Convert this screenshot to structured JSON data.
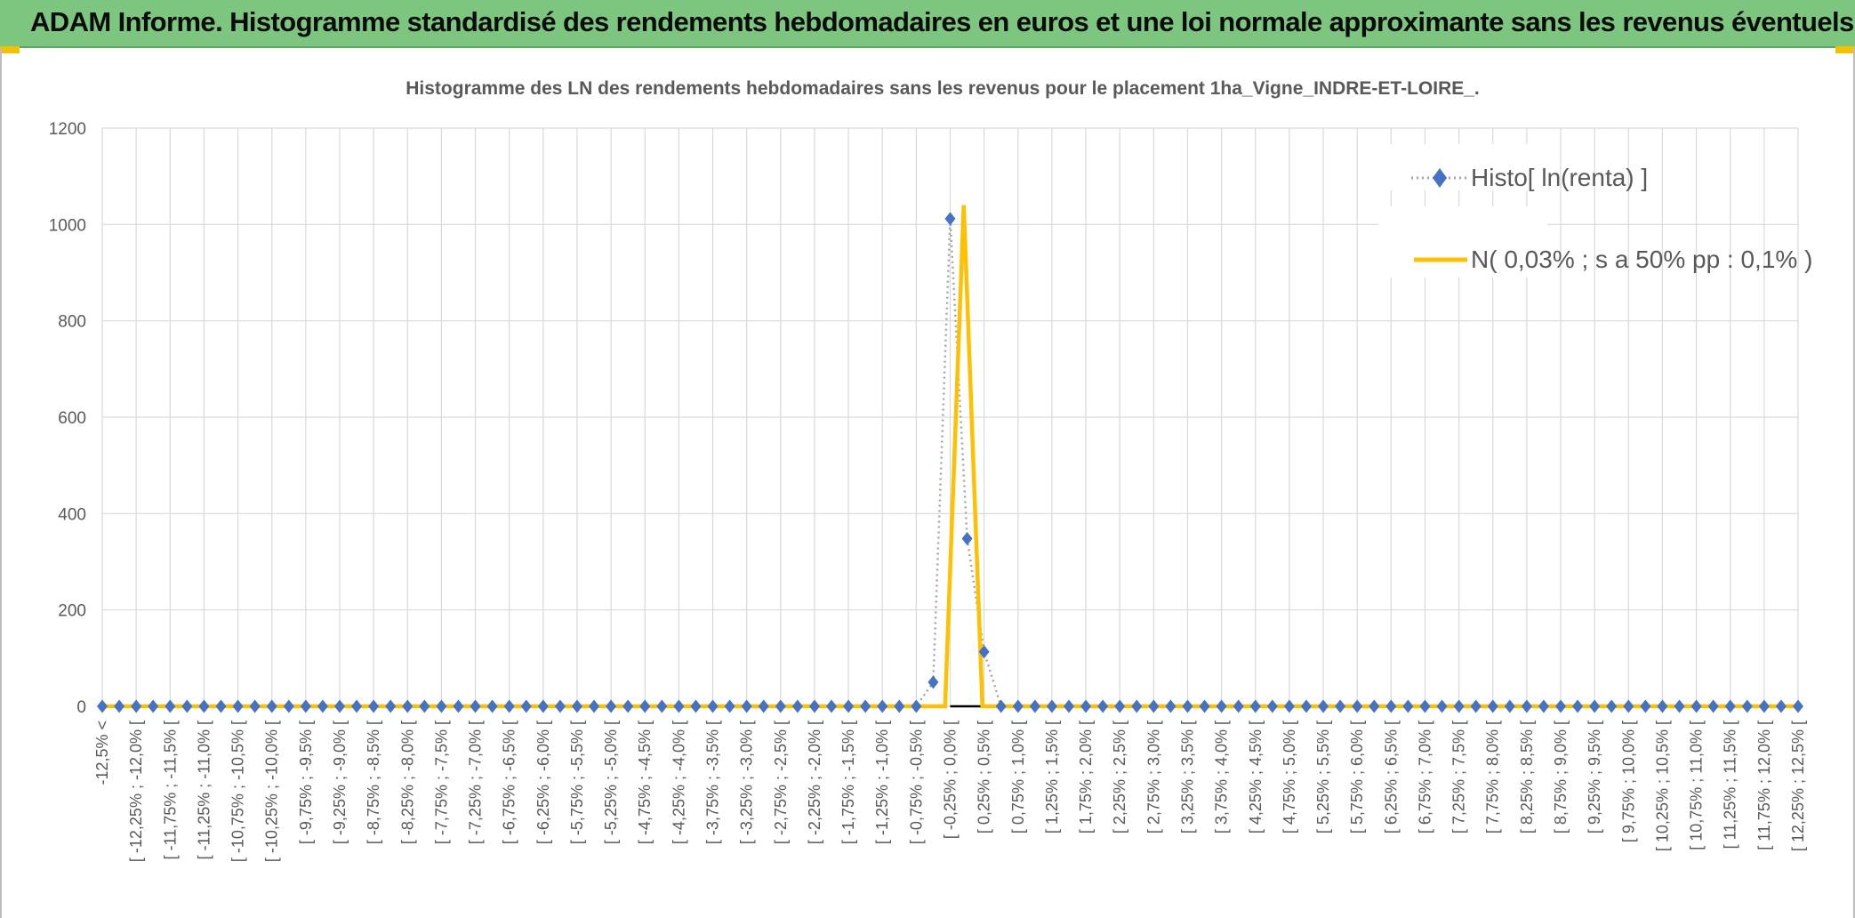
{
  "banner": {
    "title": "ADAM Informe. Histogramme standardisé des rendements hebdomadaires en euros et une loi normale approximante sans les revenus éventuels",
    "color": "#7dc67f"
  },
  "chart_data": {
    "type": "line",
    "title": "Histogramme des LN des rendements hebdomadaires sans les revenus pour le placement 1ha_Vigne_INDRE-ET-LOIRE_.",
    "xlabel": "",
    "ylabel": "",
    "ylim": [
      0,
      1200
    ],
    "yticks": [
      0,
      200,
      400,
      600,
      800,
      1000,
      1200
    ],
    "grid": true,
    "legend_position": "top-right",
    "categories": [
      "-12,5% <",
      "[ -12,25% ; -12,0% [",
      "[ -11,75% ; -11,5% [",
      "[ -11,25% ; -11,0% [",
      "[ -10,75% ; -10,5% [",
      "[ -10,25% ; -10,0% [",
      "[ -9,75% ; -9,5% [",
      "[ -9,25% ; -9,0% [",
      "[ -8,75% ; -8,5% [",
      "[ -8,25% ; -8,0% [",
      "[ -7,75% ; -7,5% [",
      "[ -7,25% ; -7,0% [",
      "[ -6,75% ; -6,5% [",
      "[ -6,25% ; -6,0% [",
      "[ -5,75% ; -5,5% [",
      "[ -5,25% ; -5,0% [",
      "[ -4,75% ; -4,5% [",
      "[ -4,25% ; -4,0% [",
      "[ -3,75% ; -3,5% [",
      "[ -3,25% ; -3,0% [",
      "[ -2,75% ; -2,5% [",
      "[ -2,25% ; -2,0% [",
      "[ -1,75% ; -1,5% [",
      "[ -1,25% ; -1,0% [",
      "[ -0,75% ; -0,5% [",
      "[ -0,25% ; 0,0% [",
      "[ 0,25% ; 0,5% [",
      "[ 0,75% ; 1,0% [",
      "[ 1,25% ; 1,5% [",
      "[ 1,75% ; 2,0% [",
      "[ 2,25% ; 2,5% [",
      "[ 2,75% ; 3,0% [",
      "[ 3,25% ; 3,5% [",
      "[ 3,75% ; 4,0% [",
      "[ 4,25% ; 4,5% [",
      "[ 4,75% ; 5,0% [",
      "[ 5,25% ; 5,5% [",
      "[ 5,75% ; 6,0% [",
      "[ 6,25% ; 6,5% [",
      "[ 6,75% ; 7,0% [",
      "[ 7,25% ; 7,5% [",
      "[ 7,75% ; 8,0% [",
      "[ 8,25% ; 8,5% [",
      "[ 8,75% ; 9,0% [",
      "[ 9,25% ; 9,5% [",
      "[ 9,75% ; 10,0% [",
      "[ 10,25% ; 10,5% [",
      "[ 10,75% ; 11,0% [",
      "[ 11,25% ; 11,5% [",
      "[ 11,75% ; 12,0% [",
      "[ 12,25% ; 12,5% ["
    ],
    "series": [
      {
        "name": "Histo[ ln(renta) ]",
        "color": "#4472c4",
        "line_color": "#a5a5a5",
        "line_style": "dotted",
        "marker": "diamond",
        "x": [
          0,
          0.5,
          1,
          1.5,
          2,
          2.5,
          3,
          3.5,
          4,
          4.5,
          5,
          5.5,
          6,
          6.5,
          7,
          7.5,
          8,
          8.5,
          9,
          9.5,
          10,
          10.5,
          11,
          11.5,
          12,
          12.5,
          13,
          13.5,
          14,
          14.5,
          15,
          15.5,
          16,
          16.5,
          17,
          17.5,
          18,
          18.5,
          19,
          19.5,
          20,
          20.5,
          21,
          21.5,
          22,
          22.5,
          23,
          23.5,
          24,
          24.5,
          25,
          25.5,
          26,
          26.5,
          27,
          27.5,
          28,
          28.5,
          29,
          29.5,
          30,
          30.5,
          31,
          31.5,
          32,
          32.5,
          33,
          33.5,
          34,
          34.5,
          35,
          35.5,
          36,
          36.5,
          37,
          37.5,
          38,
          38.5,
          39,
          39.5,
          40,
          40.5,
          41,
          41.5,
          42,
          42.5,
          43,
          43.5,
          44,
          44.5,
          45,
          45.5,
          46,
          46.5,
          47,
          47.5,
          48,
          48.5,
          49,
          49.5,
          50
        ],
        "values": [
          0,
          0,
          0,
          0,
          0,
          0,
          0,
          0,
          0,
          0,
          0,
          0,
          0,
          0,
          0,
          0,
          0,
          0,
          0,
          0,
          0,
          0,
          0,
          0,
          0,
          0,
          0,
          0,
          0,
          0,
          0,
          0,
          0,
          0,
          0,
          0,
          0,
          0,
          0,
          0,
          0,
          0,
          0,
          0,
          0,
          0,
          0,
          0,
          0,
          50,
          1012,
          348,
          113,
          0,
          0,
          0,
          0,
          0,
          0,
          0,
          0,
          0,
          0,
          0,
          0,
          0,
          0,
          0,
          0,
          0,
          0,
          0,
          0,
          0,
          0,
          0,
          0,
          0,
          0,
          0,
          0,
          0,
          0,
          0,
          0,
          0,
          0,
          0,
          0,
          0,
          0,
          0,
          0,
          0,
          0,
          0,
          0,
          0,
          0,
          0,
          0
        ]
      },
      {
        "name": "N( 0,03% ; s a 50% pp : 0,1% )",
        "color": "#ffc000",
        "line_style": "solid",
        "x": [
          0,
          24.5,
          24.85,
          25.4,
          25.95,
          26.3,
          50
        ],
        "values": [
          0,
          0,
          0,
          1040,
          0,
          0,
          0
        ]
      }
    ]
  }
}
